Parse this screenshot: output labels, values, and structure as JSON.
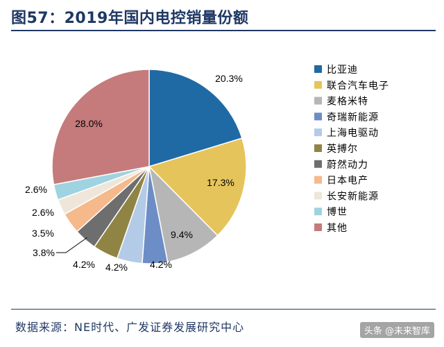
{
  "header": {
    "title": "图57：2019年国内电控销量份额"
  },
  "footer": {
    "source": "数据来源：NE时代、广发证券发展研究中心",
    "watermark": "头条 @未来智库"
  },
  "chart_data": {
    "type": "pie",
    "title": "图57：2019年国内电控销量份额",
    "legend_position": "right",
    "start_angle_deg": 0,
    "direction": "clockwise",
    "slices": [
      {
        "name": "比亚迪",
        "value": 20.3,
        "label": "20.3%",
        "color": "#1f6aa5"
      },
      {
        "name": "联合汽车电子",
        "value": 17.3,
        "label": "17.3%",
        "color": "#e6c45c"
      },
      {
        "name": "麦格米特",
        "value": 9.4,
        "label": "9.4%",
        "color": "#b6b6b6"
      },
      {
        "name": "奇瑞新能源",
        "value": 4.2,
        "label": "4.2%",
        "color": "#6d8dc6"
      },
      {
        "name": "上海电驱动",
        "value": 4.2,
        "label": "4.2%",
        "color": "#b3cbe7"
      },
      {
        "name": "英搏尔",
        "value": 4.2,
        "label": "4.2%",
        "color": "#8f8444"
      },
      {
        "name": "蔚然动力",
        "value": 3.8,
        "label": "3.8%",
        "color": "#6e6e6e"
      },
      {
        "name": "日本电产",
        "value": 3.5,
        "label": "3.5%",
        "color": "#f5b98c"
      },
      {
        "name": "长安新能源",
        "value": 2.6,
        "label": "2.6%",
        "color": "#efe6da"
      },
      {
        "name": "博世",
        "value": 2.6,
        "label": "2.6%",
        "color": "#9fd3e0"
      },
      {
        "name": "其他",
        "value": 28.0,
        "label": "28.0%",
        "color": "#c57b7b"
      }
    ]
  }
}
